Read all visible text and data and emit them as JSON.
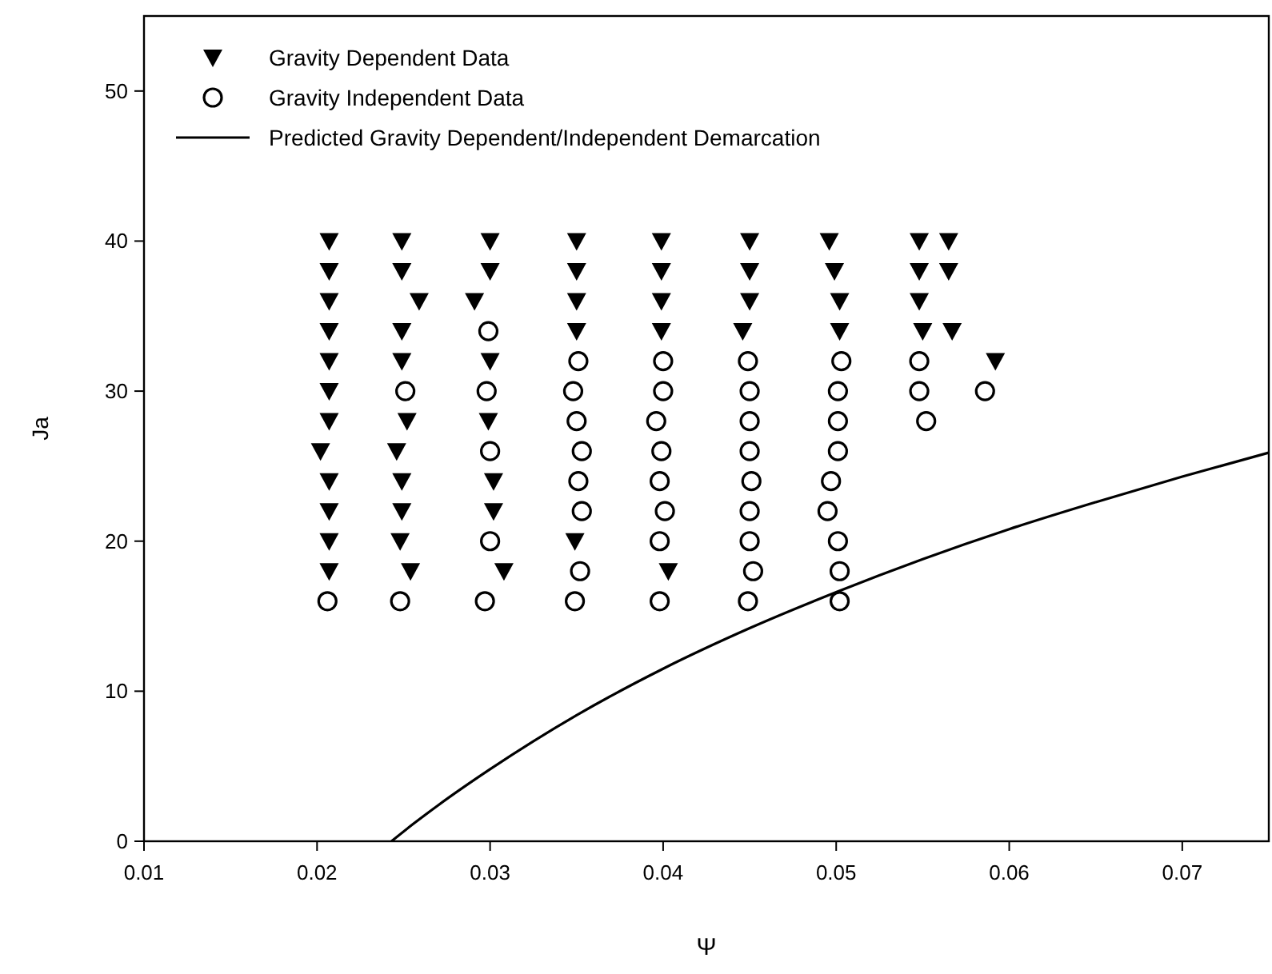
{
  "chart_data": {
    "type": "scatter",
    "xlabel": "Ψ",
    "ylabel": "Ja",
    "xlim": [
      0.01,
      0.075
    ],
    "ylim": [
      0,
      55
    ],
    "xticks": [
      0.01,
      0.02,
      0.03,
      0.04,
      0.05,
      0.06,
      0.07
    ],
    "yticks": [
      0,
      10,
      20,
      30,
      40,
      50
    ],
    "grid": false,
    "legend": "top left",
    "series": [
      {
        "name": "Gravity Dependent Data",
        "marker": "triangle",
        "color": "#000000",
        "x": [
          0.0207,
          0.0207,
          0.0207,
          0.0207,
          0.0207,
          0.0207,
          0.0207,
          0.0202,
          0.0207,
          0.0207,
          0.0207,
          0.0207,
          0.0249,
          0.0249,
          0.0259,
          0.0249,
          0.0249,
          0.0252,
          0.0246,
          0.0249,
          0.0249,
          0.0248,
          0.0254,
          0.03,
          0.03,
          0.0291,
          0.03,
          0.0299,
          0.0302,
          0.0302,
          0.0308,
          0.035,
          0.035,
          0.035,
          0.035,
          0.0349,
          0.0399,
          0.0399,
          0.0399,
          0.0399,
          0.0403,
          0.045,
          0.045,
          0.045,
          0.0446,
          0.0496,
          0.0499,
          0.0502,
          0.0502,
          0.0548,
          0.0548,
          0.0548,
          0.055,
          0.0565,
          0.0565,
          0.0567,
          0.0592
        ],
        "values": [
          40,
          38,
          36,
          34,
          32,
          30,
          28,
          26,
          24,
          22,
          20,
          18,
          40,
          38,
          36,
          34,
          32,
          28,
          26,
          24,
          22,
          20,
          18,
          40,
          38,
          36,
          32,
          28,
          24,
          22,
          18,
          40,
          38,
          36,
          34,
          20,
          40,
          38,
          36,
          34,
          18,
          40,
          38,
          36,
          34,
          40,
          38,
          36,
          34,
          40,
          38,
          36,
          34,
          40,
          38,
          34,
          32
        ]
      },
      {
        "name": "Gravity Independent Data",
        "marker": "circle",
        "color": "#000000",
        "x": [
          0.0206,
          0.0251,
          0.0248,
          0.0299,
          0.0298,
          0.03,
          0.03,
          0.0297,
          0.0351,
          0.0348,
          0.035,
          0.0353,
          0.0351,
          0.0353,
          0.0352,
          0.0349,
          0.04,
          0.04,
          0.0396,
          0.0399,
          0.0398,
          0.0401,
          0.0398,
          0.0398,
          0.0449,
          0.045,
          0.045,
          0.045,
          0.0451,
          0.045,
          0.045,
          0.0452,
          0.0449,
          0.0503,
          0.0501,
          0.0501,
          0.0501,
          0.0497,
          0.0495,
          0.0501,
          0.0502,
          0.0502,
          0.0548,
          0.0548,
          0.0552,
          0.0586
        ],
        "values": [
          16,
          30,
          16,
          34,
          30,
          26,
          20,
          16,
          32,
          30,
          28,
          26,
          24,
          22,
          18,
          16,
          32,
          30,
          28,
          26,
          24,
          22,
          20,
          16,
          32,
          30,
          28,
          26,
          24,
          22,
          20,
          18,
          16,
          32,
          30,
          28,
          26,
          24,
          22,
          20,
          18,
          16,
          32,
          30,
          28,
          30
        ]
      },
      {
        "name": "Predicted Gravity Dependent/Independent Demarcation",
        "type": "line",
        "marker": "none",
        "line_style": "solid",
        "color": "#000000",
        "x": [
          0.0243,
          0.0255,
          0.027,
          0.03,
          0.035,
          0.04,
          0.045,
          0.05,
          0.055,
          0.06,
          0.065,
          0.07,
          0.075
        ],
        "values": [
          0,
          1.1,
          2.4,
          4.8,
          8.4,
          11.5,
          14.2,
          16.6,
          18.8,
          20.8,
          22.6,
          24.3,
          25.9
        ]
      }
    ]
  }
}
